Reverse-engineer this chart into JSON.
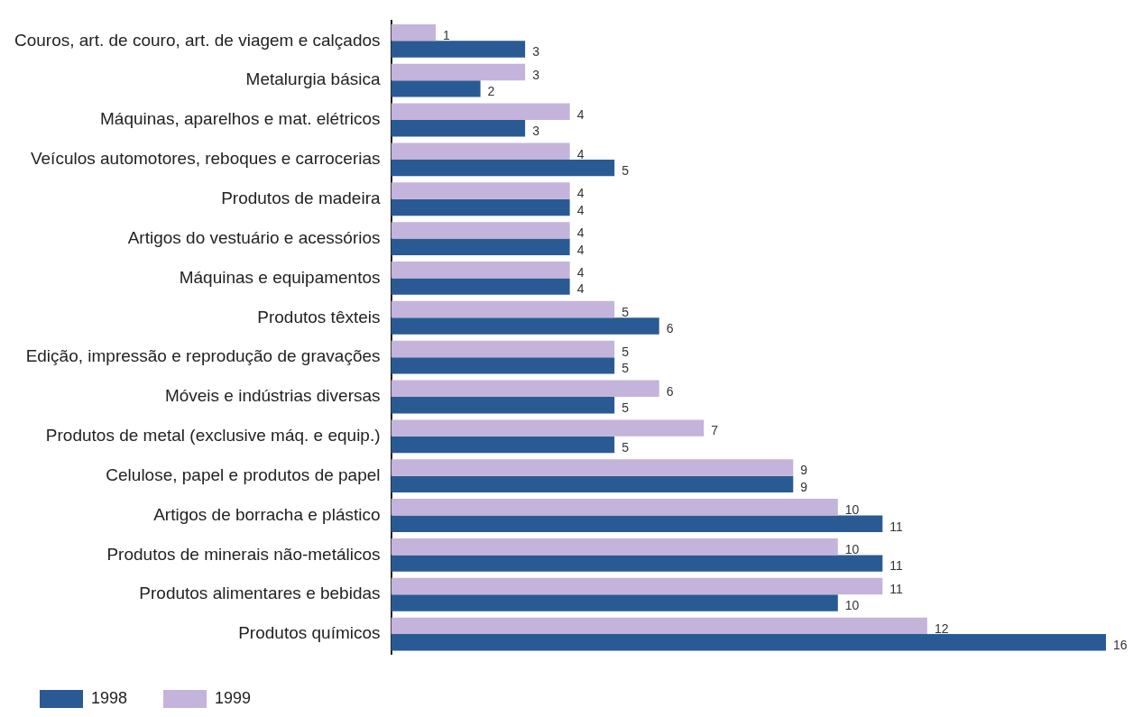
{
  "chart_data": {
    "type": "bar",
    "orientation": "horizontal",
    "categories": [
      "Couros, art. de couro, art. de viagem e calçados",
      "Metalurgia básica",
      "Máquinas, aparelhos e mat. elétricos",
      "Veículos automotores, reboques e carrocerias",
      "Produtos de madeira",
      "Artigos do vestuário e acessórios",
      "Máquinas e equipamentos",
      "Produtos têxteis",
      "Edição, impressão e reprodução de gravações",
      "Móveis e indústrias diversas",
      "Produtos de metal (exclusive máq. e equip.)",
      "Celulose, papel e produtos de papel",
      "Artigos de borracha e plástico",
      "Produtos de minerais não-metálicos",
      "Produtos alimentares e bebidas",
      "Produtos químicos"
    ],
    "series": [
      {
        "name": "1998",
        "color": "#2a5a93",
        "values": [
          3,
          2,
          3,
          5,
          4,
          4,
          4,
          6,
          5,
          5,
          5,
          9,
          11,
          11,
          10,
          16
        ]
      },
      {
        "name": "1999",
        "color": "#c4b3da",
        "values": [
          1,
          3,
          4,
          4,
          4,
          4,
          4,
          5,
          5,
          6,
          7,
          9,
          10,
          10,
          11,
          12
        ]
      }
    ],
    "data_labels": true,
    "legend": "bottom",
    "grid": false,
    "tick_labels": "y"
  }
}
